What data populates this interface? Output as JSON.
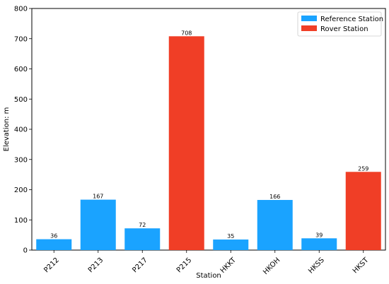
{
  "chart_data": {
    "type": "bar",
    "categories": [
      "P212",
      "P213",
      "P217",
      "P215",
      "HKKT",
      "HKOH",
      "HKSS",
      "HKST"
    ],
    "values": [
      36,
      167,
      72,
      708,
      35,
      166,
      39,
      259
    ],
    "station_type": [
      "reference",
      "reference",
      "reference",
      "rover",
      "reference",
      "reference",
      "reference",
      "rover"
    ],
    "xlabel": "Station",
    "ylabel": "Elevation: m",
    "ylim": [
      0,
      800
    ],
    "yticks": [
      0,
      100,
      200,
      300,
      400,
      500,
      600,
      700,
      800
    ],
    "grid": false,
    "legend": {
      "placement": "top-right",
      "entries": [
        {
          "key": "reference",
          "label": "Reference Station",
          "color": "#1aa3ff"
        },
        {
          "key": "rover",
          "label": "Rover Station",
          "color": "#f03e26"
        }
      ]
    }
  }
}
